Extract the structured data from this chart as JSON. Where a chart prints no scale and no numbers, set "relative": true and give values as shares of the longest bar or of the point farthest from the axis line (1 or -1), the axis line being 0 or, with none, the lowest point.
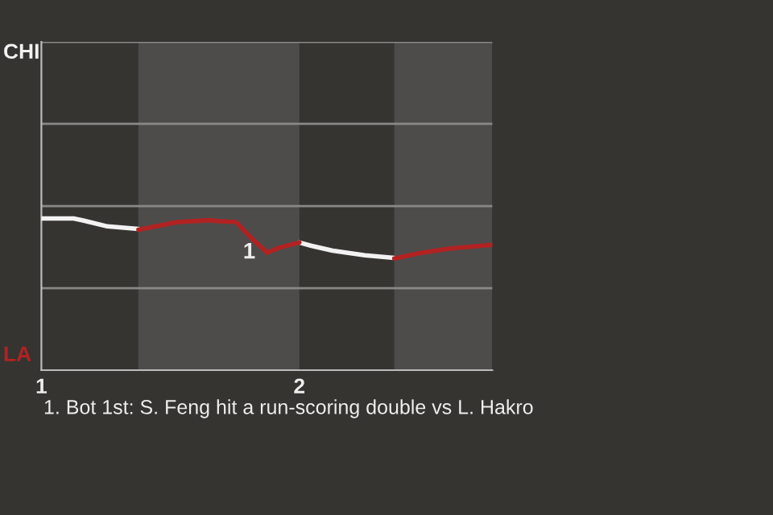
{
  "chart_data": {
    "type": "line",
    "relative": true,
    "xlim": [
      1,
      2.748
    ],
    "xticks": [
      1,
      2
    ],
    "ref_lines": [
      {
        "axis": "y",
        "value": 0.541,
        "color": "#8a8886"
      },
      {
        "axis": "y",
        "value": 1.082,
        "color": "#8a8886"
      },
      {
        "axis": "y",
        "value": 1.624,
        "color": "#8a8886"
      },
      {
        "axis": "y",
        "value": 2.165,
        "color": "#8a8886"
      }
    ],
    "bands": [
      {
        "axis": "x",
        "from": 1.376,
        "to": 2.0,
        "color": "#4d4c4b"
      },
      {
        "axis": "x",
        "from": 2.368,
        "to": 2.748,
        "color": "#4d4c4b"
      }
    ],
    "series": [
      {
        "color": "#f2f2f2",
        "x": [
          1.0,
          1.125,
          1.162,
          1.256,
          1.376,
          null,
          2.0,
          2.047,
          2.129,
          2.254,
          2.368
        ],
        "values": [
          1,
          1,
          0.987,
          0.948,
          0.931,
          null,
          0.842,
          0.82,
          0.788,
          0.758,
          0.74
        ]
      },
      {
        "color": "#b22222",
        "x": [
          1.376,
          1.526,
          1.651,
          1.682,
          1.755,
          1.817,
          1.875,
          1.921,
          2.0,
          null,
          2.368,
          2.462,
          2.586,
          2.748
        ],
        "values": [
          0.926,
          0.976,
          0.989,
          0.983,
          0.976,
          0.866,
          0.775,
          0.807,
          0.842,
          null,
          0.736,
          0.771,
          0.803,
          0.827
        ]
      }
    ],
    "annotations": [
      "CHI",
      "LA",
      "1. Bot 1st: S. Feng hit a run-scoring double vs L. Hakro",
      {
        "text": "1",
        "x": 1.875,
        "y": 0.775
      }
    ]
  }
}
